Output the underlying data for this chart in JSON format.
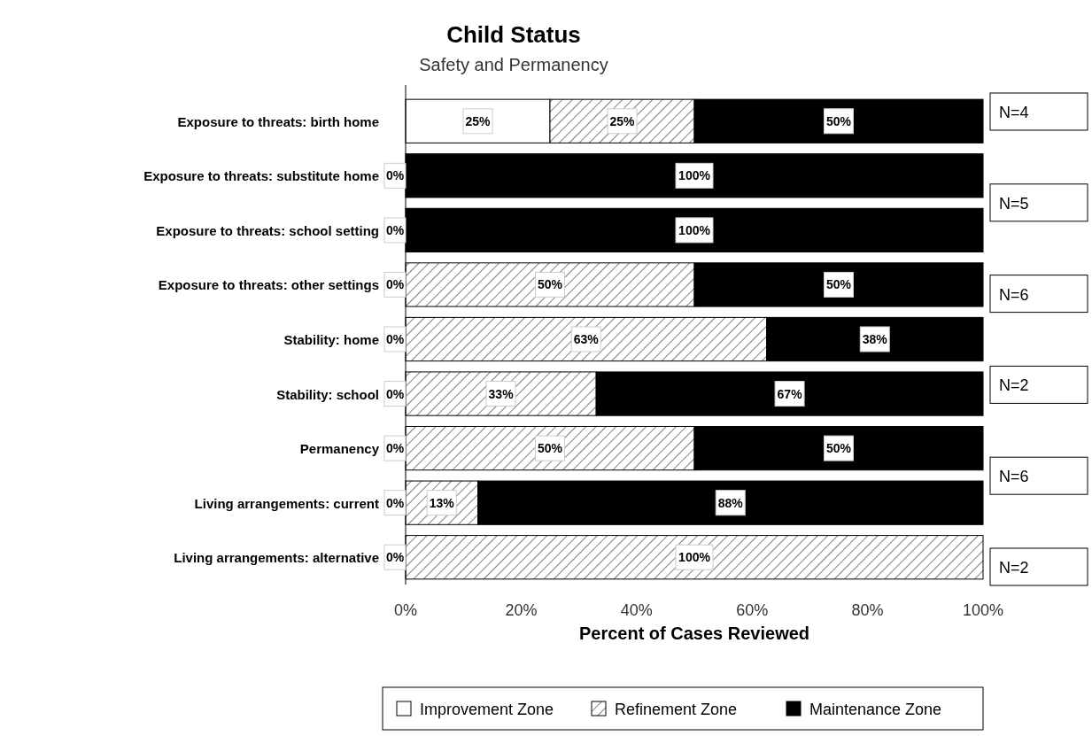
{
  "chart_data": {
    "type": "bar",
    "orientation": "horizontal",
    "stacked": true,
    "title": "Child Status",
    "subtitle": "Safety and Permanency",
    "xlabel": "Percent of Cases Reviewed",
    "categories": [
      "Exposure to threats: birth home",
      "Exposure to threats: substitute home",
      "Exposure to threats: school setting",
      "Exposure to threats: other settings",
      "Stability: home",
      "Stability: school",
      "Permanency",
      "Living arrangements: current",
      "Living arrangements: alternative"
    ],
    "series": [
      {
        "name": "Improvement Zone",
        "color": "#ffffff",
        "values": [
          25,
          0,
          0,
          0,
          0,
          0,
          0,
          0,
          0
        ],
        "value_labels": [
          "25%",
          "0%",
          "0%",
          "0%",
          "0%",
          "0%",
          "0%",
          "0%",
          "0%"
        ]
      },
      {
        "name": "Refinement Zone",
        "color": "#000000",
        "values": [
          25,
          0,
          0,
          50,
          62.5,
          33,
          50,
          12.5,
          100
        ],
        "value_labels": [
          "25%",
          null,
          null,
          "50%",
          "63%",
          "33%",
          "50%",
          "13%",
          "100%"
        ]
      },
      {
        "name": "Maintenance Zone",
        "color": "#000000",
        "values": [
          50,
          100,
          100,
          50,
          37.5,
          67,
          50,
          87.5,
          0
        ],
        "value_labels": [
          "50%",
          "100%",
          "100%",
          "50%",
          "38%",
          "67%",
          "50%",
          "88%",
          null
        ]
      }
    ],
    "xlim": [
      0,
      100
    ],
    "xticks": [
      {
        "value": 0,
        "label": "0%"
      },
      {
        "value": 20,
        "label": "20%"
      },
      {
        "value": 40,
        "label": "40%"
      },
      {
        "value": 60,
        "label": "60%"
      },
      {
        "value": 80,
        "label": "80%"
      },
      {
        "value": 100,
        "label": "100%"
      }
    ],
    "legend": "bottom",
    "grid": false,
    "annotations": [
      "N=4",
      "N=5",
      "N=6",
      "N=2",
      "N=6",
      "N=2"
    ]
  }
}
